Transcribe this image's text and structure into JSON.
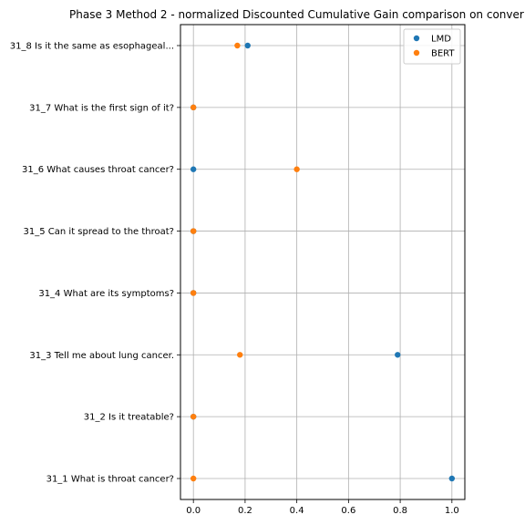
{
  "chart_data": {
    "type": "scatter",
    "title": "Phase 3 Method 2 - normalized Discounted Cumulative Gain comparison on conver",
    "xlabel": "",
    "ylabel": "",
    "xlim": [
      -0.05,
      1.05
    ],
    "x_ticks": [
      0.0,
      0.2,
      0.4,
      0.6,
      0.8,
      1.0
    ],
    "x_tick_labels": [
      "0.0",
      "0.2",
      "0.4",
      "0.6",
      "0.8",
      "1.0"
    ],
    "categories": [
      "31_1 What is throat cancer?",
      "31_2 Is it treatable?",
      "31_3 Tell me about lung cancer.",
      "31_4 What are its symptoms?",
      "31_5 Can it spread to the throat?",
      "31_6 What causes throat cancer?",
      "31_7 What is the first sign of it?",
      "31_8 Is it the same as esophageal..."
    ],
    "grid": true,
    "legend_position": "top-right",
    "series": [
      {
        "name": "LMD",
        "color": "#1f77b4",
        "values": [
          1.0,
          0.0,
          0.79,
          0.0,
          0.0,
          0.0,
          0.0,
          0.21
        ]
      },
      {
        "name": "BERT",
        "color": "#ff7f0e",
        "values": [
          0.0,
          0.0,
          0.18,
          0.0,
          0.0,
          0.4,
          0.0,
          0.17
        ]
      }
    ]
  }
}
